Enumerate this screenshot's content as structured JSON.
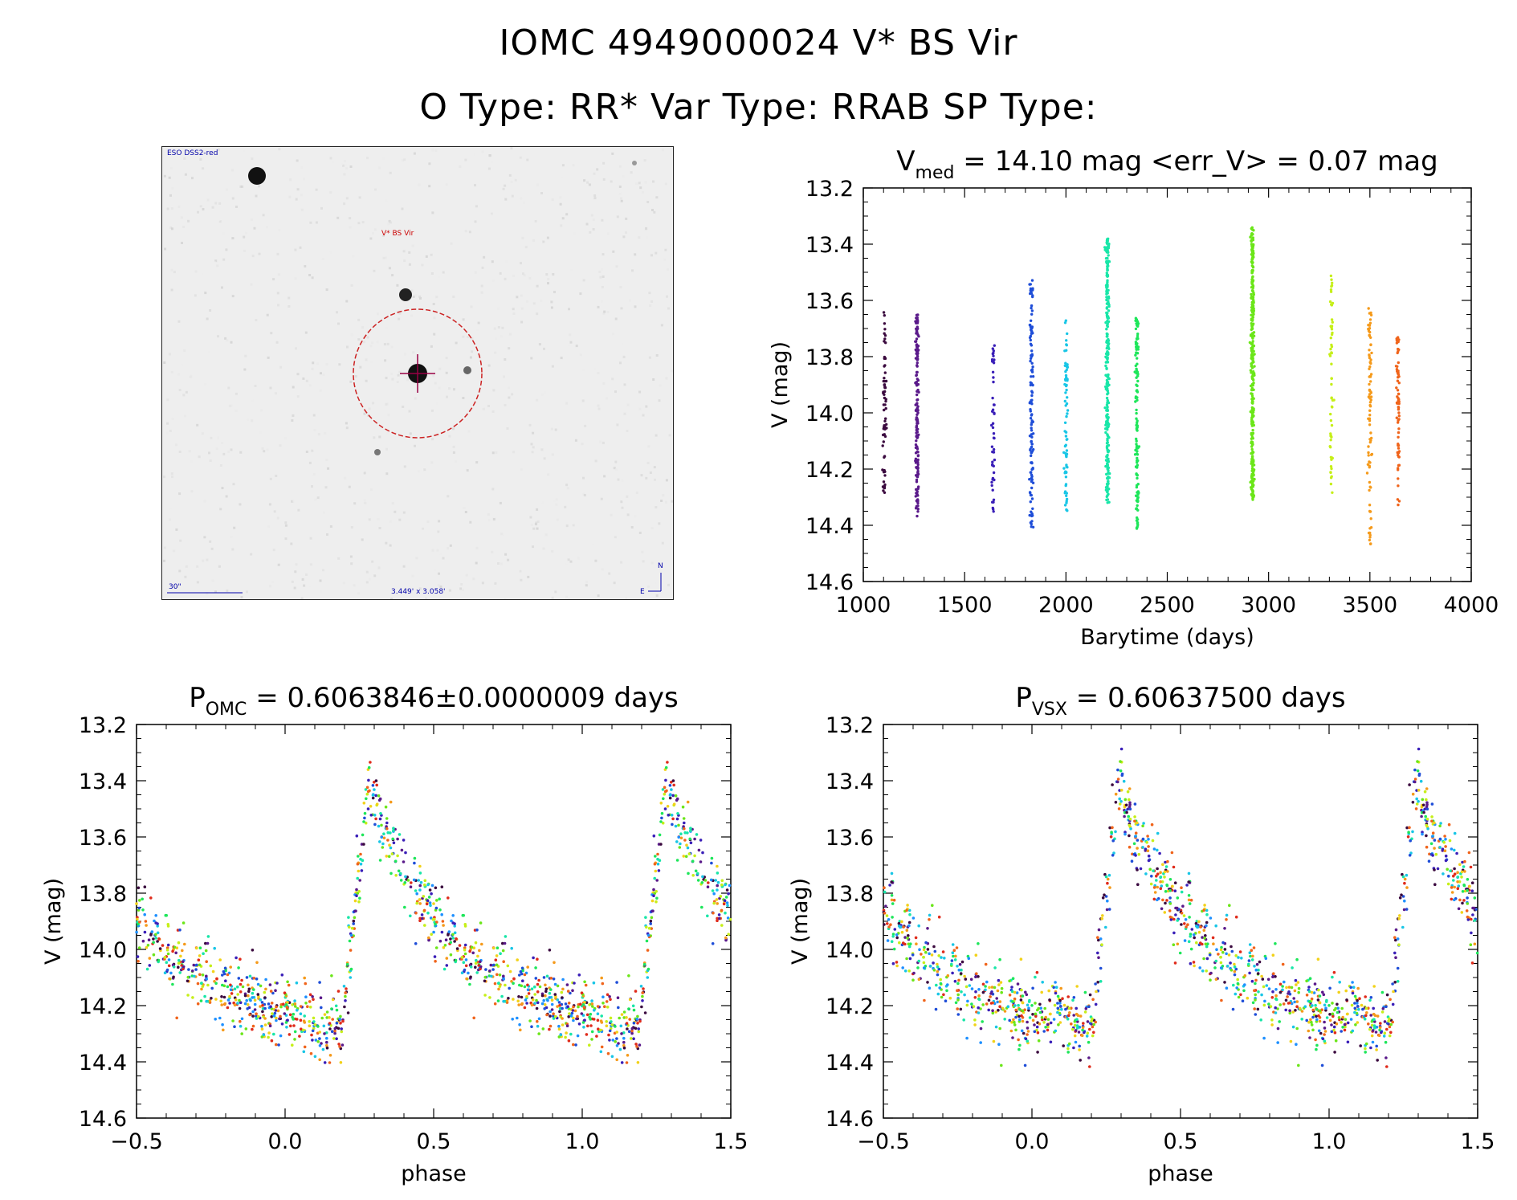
{
  "header": {
    "line1": "IOMC 4949000024   V* BS Vir",
    "line2": "O Type: RR*  Var Type: RRAB  SP Type:"
  },
  "finder": {
    "survey": "ESO DSS2-red",
    "target_label": "V* BS Vir",
    "scale_label": "30\"",
    "fov_label": "3.449' x 3.058'",
    "north": "N",
    "east": "E"
  },
  "colors": {
    "palette": [
      "#3b0a3f",
      "#5a1a8a",
      "#3a1fb8",
      "#1f4ed8",
      "#1e90ff",
      "#19c6e6",
      "#19e6a8",
      "#1ee65a",
      "#6be619",
      "#c6ef19",
      "#f2d21a",
      "#f59a1b",
      "#f0641b",
      "#e02b1b"
    ]
  },
  "chart_data": [
    {
      "id": "lightcurve",
      "type": "scatter",
      "title_main": "V",
      "title_sub": "med",
      "title_rest": " = 14.10 mag <err_V> = 0.07 mag",
      "xlabel": "Barytime (days)",
      "ylabel": "V (mag)",
      "xlim": [
        1000,
        4000
      ],
      "ylim": [
        14.6,
        13.2
      ],
      "xticks": [
        1000,
        1500,
        2000,
        2500,
        3000,
        3500,
        4000
      ],
      "yticks": [
        13.2,
        13.4,
        13.6,
        13.8,
        14.0,
        14.2,
        14.4,
        14.6
      ],
      "xtick_labels": [
        "1000",
        "1500",
        "2000",
        "2500",
        "3000",
        "3500",
        "4000"
      ],
      "ytick_labels": [
        "13.2",
        "13.4",
        "13.6",
        "13.8",
        "14.0",
        "14.2",
        "14.4",
        "14.6"
      ],
      "groups": [
        {
          "t": 1105,
          "n": 70,
          "vmin": 13.64,
          "vmax": 14.29,
          "color": 0
        },
        {
          "t": 1265,
          "n": 160,
          "vmin": 13.65,
          "vmax": 14.37,
          "color": 1
        },
        {
          "t": 1640,
          "n": 50,
          "vmin": 13.71,
          "vmax": 14.36,
          "color": 2
        },
        {
          "t": 1830,
          "n": 130,
          "vmin": 13.52,
          "vmax": 14.41,
          "color": 3
        },
        {
          "t": 2000,
          "n": 70,
          "vmin": 13.67,
          "vmax": 14.35,
          "color": 5
        },
        {
          "t": 2205,
          "n": 260,
          "vmin": 13.38,
          "vmax": 14.32,
          "color": 6
        },
        {
          "t": 2350,
          "n": 120,
          "vmin": 13.66,
          "vmax": 14.42,
          "color": 7
        },
        {
          "t": 2920,
          "n": 330,
          "vmin": 13.34,
          "vmax": 14.31,
          "color": 8
        },
        {
          "t": 3310,
          "n": 60,
          "vmin": 13.49,
          "vmax": 14.3,
          "color": 9
        },
        {
          "t": 3500,
          "n": 90,
          "vmin": 13.62,
          "vmax": 14.48,
          "color": 11
        },
        {
          "t": 3640,
          "n": 70,
          "vmin": 13.73,
          "vmax": 14.33,
          "color": 12
        }
      ]
    },
    {
      "id": "phase_omc",
      "type": "scatter",
      "title_main": "P",
      "title_sub": "OMC",
      "title_rest": " = 0.6063846±0.0000009 days",
      "xlabel": "phase",
      "ylabel": "V (mag)",
      "xlim": [
        -0.5,
        1.5
      ],
      "ylim": [
        14.6,
        13.2
      ],
      "xticks": [
        -0.5,
        0.0,
        0.5,
        1.0,
        1.5
      ],
      "yticks": [
        13.2,
        13.4,
        13.6,
        13.8,
        14.0,
        14.2,
        14.4,
        14.6
      ],
      "xtick_labels": [
        "−0.5",
        "0.0",
        "0.5",
        "1.0",
        "1.5"
      ],
      "ytick_labels": [
        "13.2",
        "13.4",
        "13.6",
        "13.8",
        "14.0",
        "14.2",
        "14.4",
        "14.6"
      ],
      "template": {
        "min_phase": 0.28,
        "max_mag": 13.42,
        "min_mag": 14.27,
        "rise_start": 0.19,
        "n_points": 700,
        "scatter": 0.06
      },
      "phase_offset": 0.0
    },
    {
      "id": "phase_vsx",
      "type": "scatter",
      "title_main": "P",
      "title_sub": "VSX",
      "title_rest": " = 0.60637500 days",
      "xlabel": "phase",
      "ylabel": "V (mag)",
      "xlim": [
        -0.5,
        1.5
      ],
      "ylim": [
        14.6,
        13.2
      ],
      "xticks": [
        -0.5,
        0.0,
        0.5,
        1.0,
        1.5
      ],
      "yticks": [
        13.2,
        13.4,
        13.6,
        13.8,
        14.0,
        14.2,
        14.4,
        14.6
      ],
      "xtick_labels": [
        "−0.5",
        "0.0",
        "0.5",
        "1.0",
        "1.5"
      ],
      "ytick_labels": [
        "13.2",
        "13.4",
        "13.6",
        "13.8",
        "14.0",
        "14.2",
        "14.4",
        "14.6"
      ],
      "template": {
        "min_phase": 0.28,
        "max_mag": 13.42,
        "min_mag": 14.27,
        "rise_start": 0.19,
        "n_points": 700,
        "scatter": 0.07
      },
      "phase_offset": -0.01
    }
  ]
}
